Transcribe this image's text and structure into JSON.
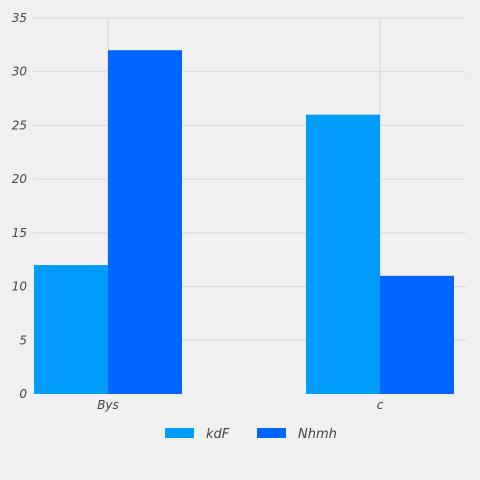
{
  "colors": {
    "background": "#f0f0f0",
    "grid": "#d6d6d6",
    "text": "#444444"
  },
  "chart_data": {
    "type": "bar",
    "title": "",
    "xlabel": "",
    "ylabel": "",
    "categories": [
      "Bys",
      "c"
    ],
    "series": [
      {
        "name": "kdF",
        "values": [
          12,
          26
        ],
        "color": "#009cf9"
      },
      {
        "name": "Nhmh",
        "values": [
          32,
          11
        ],
        "color": "#0064fe"
      }
    ],
    "ylim": [
      0,
      35
    ],
    "yticks": [
      0,
      5,
      10,
      15,
      20,
      25,
      30,
      35
    ],
    "grid": true,
    "legend_position": "bottom-center"
  }
}
